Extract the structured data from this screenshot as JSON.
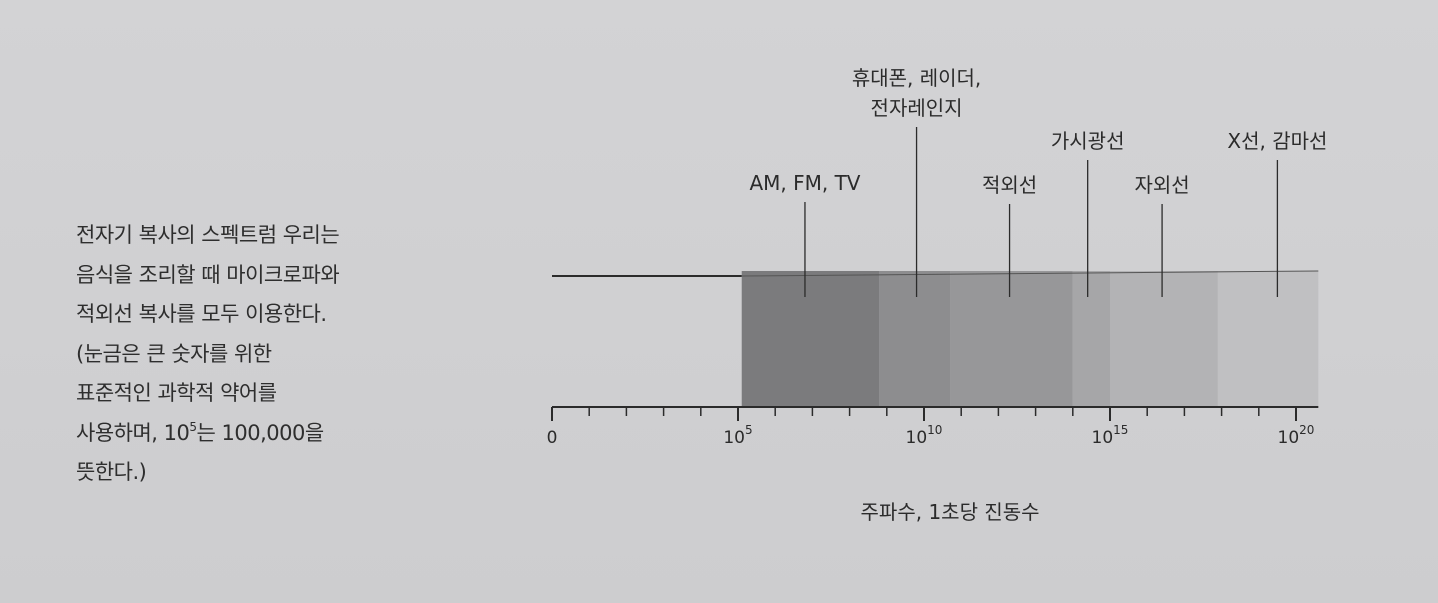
{
  "caption": {
    "lines": [
      "전자기 복사의 스펙트럼   우리는",
      "음식을 조리할 때 마이크로파와",
      "적외선 복사를 모두 이용한다.",
      "(눈금은 큰 숫자를 위한",
      "표준적인 과학적 약어를"
    ],
    "line6_pre": "사용하며, 10",
    "line6_sup": "5",
    "line6_post": "는 100,000을",
    "line7": "뜻한다.)"
  },
  "diagram": {
    "axis_title": "주파수, 1초당 진동수",
    "tick_labels": [
      {
        "base": "0",
        "exp": "",
        "value": 0
      },
      {
        "base": "10",
        "exp": "5",
        "value": 5
      },
      {
        "base": "10",
        "exp": "10",
        "value": 10
      },
      {
        "base": "10",
        "exp": "15",
        "value": 15
      },
      {
        "base": "10",
        "exp": "20",
        "value": 20
      }
    ],
    "bands": [
      {
        "name": "AM, FM, TV",
        "from": 5.1,
        "to": 8.8,
        "color": "#7b7b7d"
      },
      {
        "name": "휴대폰, 레이더, 전자레인지",
        "from": 8.8,
        "to": 10.7,
        "color": "#8d8d8f"
      },
      {
        "name": "적외선",
        "from": 10.7,
        "to": 14.0,
        "color": "#979799"
      },
      {
        "name": "가시광선",
        "from": 14.0,
        "to": 15.0,
        "color": "#a6a6a8"
      },
      {
        "name": "자외선",
        "from": 15.0,
        "to": 17.9,
        "color": "#b3b3b5"
      },
      {
        "name": "X선, 감마선",
        "from": 17.9,
        "to": 20.6,
        "color": "#c0c0c2"
      }
    ],
    "labels": [
      {
        "lines": [
          "AM, FM, TV"
        ],
        "at": 6.8
      },
      {
        "lines": [
          "휴대폰, 레이더,",
          "전자레인지"
        ],
        "at": 9.8
      },
      {
        "lines": [
          "적외선"
        ],
        "at": 12.3
      },
      {
        "lines": [
          "가시광선"
        ],
        "at": 14.4
      },
      {
        "lines": [
          "자외선"
        ],
        "at": 16.4
      },
      {
        "lines": [
          "X선, 감마선"
        ],
        "at": 19.5
      }
    ]
  },
  "colors": {
    "ink": "#2b2b2b",
    "background": "#cfcfd1"
  }
}
